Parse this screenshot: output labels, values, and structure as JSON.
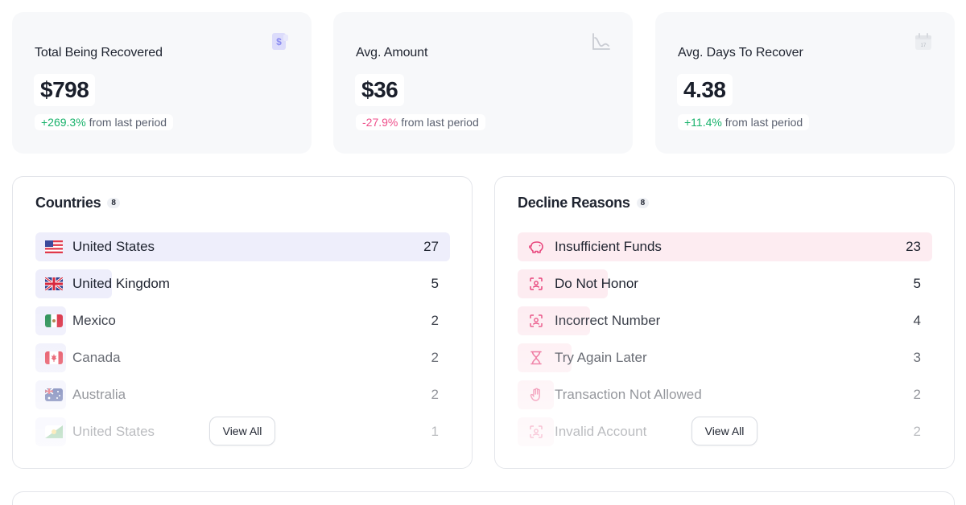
{
  "stats": [
    {
      "title": "Total Being Recovered",
      "value": "$798",
      "delta": "+269.3%",
      "delta_text": "from last period",
      "icon": "receipt-dollar-icon"
    },
    {
      "title": "Avg. Amount",
      "value": "$36",
      "delta": "-27.9%",
      "delta_text": "from last period",
      "icon": "chart-curve-icon"
    },
    {
      "title": "Avg. Days To Recover",
      "value": "4.38",
      "delta": "+11.4%",
      "delta_text": "from last period",
      "icon": "calendar-icon"
    }
  ],
  "countries": {
    "title": "Countries",
    "count": "8",
    "view_all": "View All",
    "items": [
      {
        "label": "United States",
        "value": "27",
        "fraction": 1.0,
        "icon": "us-flag-icon"
      },
      {
        "label": "United Kingdom",
        "value": "5",
        "fraction": 0.185,
        "icon": "uk-flag-icon"
      },
      {
        "label": "Mexico",
        "value": "2",
        "fraction": 0.074,
        "icon": "mexico-flag-icon"
      },
      {
        "label": "Canada",
        "value": "2",
        "fraction": 0.074,
        "icon": "canada-flag-icon"
      },
      {
        "label": "Australia",
        "value": "2",
        "fraction": 0.074,
        "icon": "australia-flag-icon"
      },
      {
        "label": "United States",
        "value": "1",
        "fraction": 0.037,
        "icon": "flag-icon"
      }
    ]
  },
  "declines": {
    "title": "Decline Reasons",
    "count": "8",
    "view_all": "View All",
    "items": [
      {
        "label": "Insufficient Funds",
        "value": "23",
        "fraction": 1.0,
        "icon": "piggy-bank-icon"
      },
      {
        "label": "Do Not Honor",
        "value": "5",
        "fraction": 0.217,
        "icon": "scan-face-icon"
      },
      {
        "label": "Incorrect Number",
        "value": "4",
        "fraction": 0.174,
        "icon": "scan-face-icon"
      },
      {
        "label": "Try Again Later",
        "value": "3",
        "fraction": 0.13,
        "icon": "hourglass-icon"
      },
      {
        "label": "Transaction Not Allowed",
        "value": "2",
        "fraction": 0.087,
        "icon": "hand-stop-icon"
      },
      {
        "label": "Invalid Account",
        "value": "2",
        "fraction": 0.087,
        "icon": "scan-face-icon"
      }
    ]
  },
  "colors": {
    "positive": "#18b26b",
    "negative": "#ef4f8b",
    "country_bar": "#eeeefb",
    "decline_bar": "#fdecf1",
    "decline_icon": "#e8457c"
  }
}
